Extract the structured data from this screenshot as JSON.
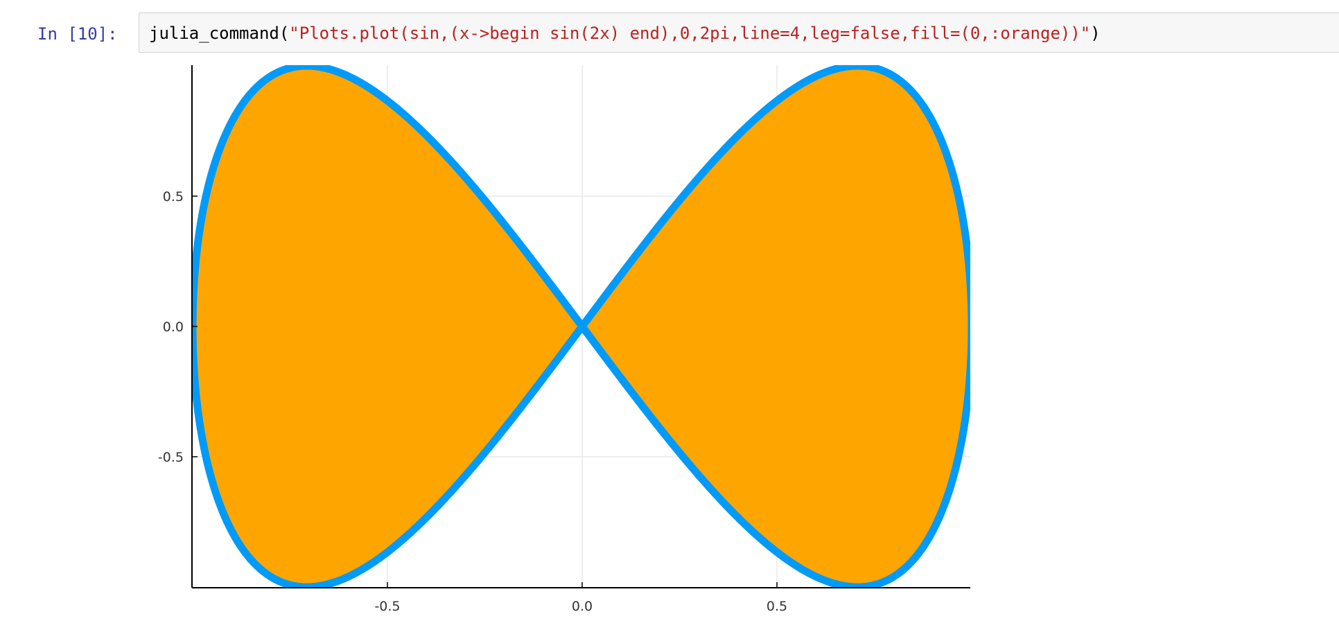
{
  "cell": {
    "prompt": "In [10]:",
    "code_prefix": "julia_command(",
    "code_string": "\"Plots.plot(sin,(x->begin sin(2x) end),0,2pi,line=4,leg=false,fill=(0,:orange))\"",
    "code_suffix": ")"
  },
  "output": {
    "chart_data": {
      "type": "line",
      "title": "",
      "xlabel": "",
      "ylabel": "",
      "curve": "parametric x = sin(t), y = sin(2t)",
      "t_range": [
        0,
        6.283185307179586
      ],
      "samples": 400,
      "fill_to": 0,
      "line_width": 4,
      "legend": false,
      "xlim": [
        -1,
        1
      ],
      "ylim": [
        -1,
        1
      ],
      "x_ticks": [
        "-0.5",
        "0.0",
        "0.5"
      ],
      "y_ticks": [
        "0.5",
        "0.0",
        "-0.5"
      ],
      "grid": true,
      "colors": {
        "line": "#009af9",
        "fill": "#ffa500",
        "grid": "#e8e8e8",
        "axis": "#000000"
      }
    }
  }
}
